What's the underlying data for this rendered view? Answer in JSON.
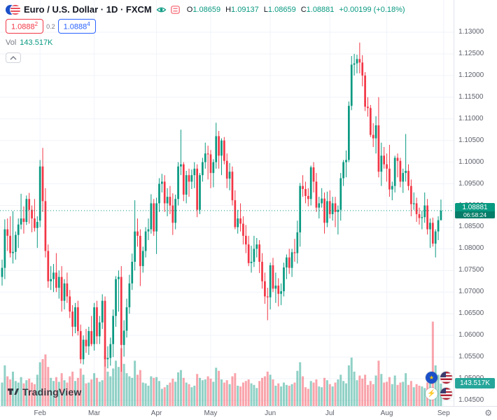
{
  "header": {
    "symbol_title": "Euro / U.S. Dollar · 1D · FXCM",
    "ohlc": {
      "o_label": "O",
      "o": "1.08659",
      "h_label": "H",
      "h": "1.09137",
      "l_label": "L",
      "l": "1.08659",
      "c_label": "C",
      "c": "1.08881",
      "change": "+0.00199 (+0.18%)"
    },
    "sell": {
      "main": "1.0888",
      "sup": "2"
    },
    "spread": "0.2",
    "buy": {
      "main": "1.0888",
      "sup": "4"
    },
    "vol_label": "Vol",
    "vol_value": "143.517K"
  },
  "axis": {
    "price_labels": [
      "1.13000",
      "1.12500",
      "1.12000",
      "1.11500",
      "1.11000",
      "1.10500",
      "1.10000",
      "1.09500",
      "1.09000",
      "1.08500",
      "1.08000",
      "1.07500",
      "1.07000",
      "1.06500",
      "1.06000",
      "1.05500",
      "1.05000",
      "1.04500"
    ],
    "price_badge": {
      "price": "1.08881",
      "countdown": "06:58:24"
    },
    "volume_badge": "143.517K"
  },
  "logo": {
    "text": "TradingView"
  },
  "colors": {
    "up": "#089981",
    "down": "#f23645",
    "buy": "#2962ff",
    "sell": "#f23645",
    "grid": "#f0f3fa",
    "axis_text": "#5d606b",
    "border": "#e0e3eb"
  },
  "chart_data": {
    "type": "candlestick",
    "title": "Euro / U.S. Dollar, 1D, FXCM",
    "ylim": [
      1.045,
      1.13
    ],
    "price_step": 0.005,
    "grid": true,
    "volume_unit": "K",
    "volume_axis_max": 560,
    "last_close": 1.08881,
    "month_ticks": [
      {
        "label": "Feb",
        "candle_index": 14
      },
      {
        "label": "Mar",
        "candle_index": 34
      },
      {
        "label": "Apr",
        "candle_index": 57
      },
      {
        "label": "May",
        "candle_index": 77
      },
      {
        "label": "Jun",
        "candle_index": 99
      },
      {
        "label": "Jul",
        "candle_index": 121
      },
      {
        "label": "Aug",
        "candle_index": 142
      },
      {
        "label": "Sep",
        "candle_index": 163
      }
    ],
    "candles_format": [
      "open",
      "high",
      "low",
      "close",
      "volume_K"
    ],
    "candles": [
      [
        1.0735,
        1.0775,
        1.0715,
        1.0756,
        150
      ],
      [
        1.0756,
        1.0868,
        1.073,
        1.0845,
        260
      ],
      [
        1.0845,
        1.087,
        1.0795,
        1.083,
        190
      ],
      [
        1.083,
        1.0875,
        1.078,
        1.079,
        170
      ],
      [
        1.079,
        1.0887,
        1.0766,
        1.0793,
        220
      ],
      [
        1.0793,
        1.084,
        1.0775,
        1.0832,
        160
      ],
      [
        1.0832,
        1.087,
        1.0802,
        1.0856,
        150
      ],
      [
        1.0856,
        1.0927,
        1.0845,
        1.087,
        185
      ],
      [
        1.087,
        1.0898,
        1.0835,
        1.0862,
        145
      ],
      [
        1.0862,
        1.0923,
        1.0855,
        1.0915,
        165
      ],
      [
        1.0915,
        1.0929,
        1.0858,
        1.089,
        175
      ],
      [
        1.089,
        1.09,
        1.0838,
        1.087,
        150
      ],
      [
        1.087,
        1.0915,
        1.084,
        1.0848,
        140
      ],
      [
        1.0848,
        1.0875,
        1.0802,
        1.0862,
        200
      ],
      [
        1.0865,
        1.1005,
        1.085,
        1.099,
        280
      ],
      [
        1.099,
        1.1033,
        1.0885,
        1.091,
        300
      ],
      [
        1.091,
        1.094,
        1.078,
        1.0795,
        330
      ],
      [
        1.0795,
        1.081,
        1.071,
        1.0725,
        250
      ],
      [
        1.0725,
        1.076,
        1.0705,
        1.073,
        180
      ],
      [
        1.073,
        1.0765,
        1.07,
        1.0745,
        160
      ],
      [
        1.0745,
        1.079,
        1.07,
        1.071,
        185
      ],
      [
        1.071,
        1.075,
        1.0685,
        1.0735,
        155
      ],
      [
        1.0735,
        1.076,
        1.0655,
        1.068,
        210
      ],
      [
        1.068,
        1.073,
        1.066,
        1.072,
        165
      ],
      [
        1.072,
        1.0745,
        1.0675,
        1.069,
        150
      ],
      [
        1.069,
        1.0705,
        1.064,
        1.0655,
        190
      ],
      [
        1.0655,
        1.067,
        1.0598,
        1.062,
        220
      ],
      [
        1.062,
        1.0675,
        1.0605,
        1.0665,
        160
      ],
      [
        1.0665,
        1.068,
        1.06,
        1.061,
        180
      ],
      [
        1.061,
        1.0625,
        1.0535,
        1.0545,
        240
      ],
      [
        1.0545,
        1.06,
        1.0533,
        1.059,
        200
      ],
      [
        1.059,
        1.0615,
        1.056,
        1.0575,
        145
      ],
      [
        1.0575,
        1.062,
        1.0555,
        1.061,
        150
      ],
      [
        1.061,
        1.0645,
        1.0575,
        1.058,
        170
      ],
      [
        1.058,
        1.0675,
        1.0565,
        1.0665,
        210
      ],
      [
        1.0665,
        1.068,
        1.058,
        1.0598,
        180
      ],
      [
        1.0598,
        1.0645,
        1.058,
        1.063,
        155
      ],
      [
        1.063,
        1.0695,
        1.0615,
        1.068,
        165
      ],
      [
        1.068,
        1.069,
        1.0528,
        1.0545,
        320
      ],
      [
        1.0545,
        1.0575,
        1.0524,
        1.0548,
        220
      ],
      [
        1.0548,
        1.0595,
        1.053,
        1.058,
        190
      ],
      [
        1.058,
        1.066,
        1.055,
        1.0645,
        240
      ],
      [
        1.0645,
        1.0737,
        1.062,
        1.073,
        290
      ],
      [
        1.073,
        1.075,
        1.0655,
        1.0735,
        250
      ],
      [
        1.0735,
        1.076,
        1.0516,
        1.0578,
        370
      ],
      [
        1.0578,
        1.0635,
        1.0551,
        1.0611,
        270
      ],
      [
        1.0611,
        1.0685,
        1.0595,
        1.0665,
        210
      ],
      [
        1.0665,
        1.074,
        1.065,
        1.072,
        190
      ],
      [
        1.072,
        1.0789,
        1.0705,
        1.077,
        180
      ],
      [
        1.077,
        1.0912,
        1.075,
        1.084,
        290
      ],
      [
        1.084,
        1.087,
        1.0805,
        1.083,
        200
      ],
      [
        1.083,
        1.0845,
        1.0714,
        1.076,
        230
      ],
      [
        1.076,
        1.0805,
        1.0745,
        1.0795,
        150
      ],
      [
        1.0795,
        1.085,
        1.078,
        1.084,
        145
      ],
      [
        1.084,
        1.087,
        1.082,
        1.0845,
        130
      ],
      [
        1.0845,
        1.0926,
        1.0835,
        1.0905,
        190
      ],
      [
        1.0905,
        1.0915,
        1.083,
        1.084,
        180
      ],
      [
        1.084,
        1.0918,
        1.0788,
        1.0905,
        185
      ],
      [
        1.0905,
        1.0963,
        1.0885,
        1.095,
        160
      ],
      [
        1.095,
        1.0973,
        1.093,
        1.0955,
        110
      ],
      [
        1.0955,
        1.097,
        1.0885,
        1.0905,
        120
      ],
      [
        1.0905,
        1.094,
        1.0875,
        1.092,
        135
      ],
      [
        1.092,
        1.0945,
        1.088,
        1.09,
        150
      ],
      [
        1.09,
        1.0928,
        1.0832,
        1.086,
        175
      ],
      [
        1.086,
        1.0925,
        1.0845,
        1.0915,
        155
      ],
      [
        1.0915,
        1.1,
        1.09,
        1.099,
        215
      ],
      [
        1.099,
        1.1075,
        1.097,
        1.0995,
        230
      ],
      [
        1.0995,
        1.1,
        1.091,
        1.0925,
        180
      ],
      [
        1.0925,
        1.098,
        1.0905,
        1.097,
        150
      ],
      [
        1.097,
        1.0985,
        1.092,
        1.0955,
        140
      ],
      [
        1.0955,
        1.0983,
        1.0938,
        1.097,
        120
      ],
      [
        1.097,
        1.1,
        1.094,
        1.0985,
        130
      ],
      [
        1.0985,
        1.0995,
        1.0873,
        1.089,
        205
      ],
      [
        1.089,
        1.0975,
        1.088,
        1.097,
        180
      ],
      [
        1.097,
        1.101,
        1.0955,
        1.1,
        165
      ],
      [
        1.1,
        1.1045,
        1.0985,
        1.102,
        170
      ],
      [
        1.102,
        1.1038,
        1.096,
        1.1018,
        190
      ],
      [
        1.1018,
        1.1028,
        1.094,
        1.0975,
        175
      ],
      [
        1.0975,
        1.1007,
        1.0942,
        1.1,
        155
      ],
      [
        1.1,
        1.1091,
        1.0985,
        1.106,
        245
      ],
      [
        1.106,
        1.1072,
        1.0985,
        1.1015,
        225
      ],
      [
        1.1015,
        1.1055,
        1.097,
        1.105,
        170
      ],
      [
        1.105,
        1.1058,
        1.0995,
        1.1003,
        150
      ],
      [
        1.1003,
        1.102,
        1.094,
        1.0962,
        165
      ],
      [
        1.0962,
        1.0998,
        1.0935,
        1.0978,
        140
      ],
      [
        1.0978,
        1.099,
        1.09,
        1.0912,
        190
      ],
      [
        1.0912,
        1.0935,
        1.0845,
        1.085,
        210
      ],
      [
        1.085,
        1.089,
        1.0835,
        1.087,
        130
      ],
      [
        1.087,
        1.0905,
        1.084,
        1.0858,
        125
      ],
      [
        1.0858,
        1.0875,
        1.081,
        1.083,
        150
      ],
      [
        1.083,
        1.0855,
        1.079,
        1.081,
        160
      ],
      [
        1.081,
        1.083,
        1.076,
        1.0767,
        170
      ],
      [
        1.0767,
        1.0807,
        1.0745,
        1.077,
        145
      ],
      [
        1.077,
        1.083,
        1.0758,
        1.08,
        135
      ],
      [
        1.08,
        1.0825,
        1.078,
        1.081,
        115
      ],
      [
        1.081,
        1.082,
        1.0744,
        1.077,
        160
      ],
      [
        1.077,
        1.079,
        1.0708,
        1.0725,
        180
      ],
      [
        1.0725,
        1.0745,
        1.0673,
        1.069,
        190
      ],
      [
        1.069,
        1.071,
        1.0635,
        1.0688,
        220
      ],
      [
        1.0688,
        1.0768,
        1.066,
        1.0762,
        200
      ],
      [
        1.0762,
        1.0779,
        1.07,
        1.0708,
        170
      ],
      [
        1.0708,
        1.0745,
        1.0675,
        1.0715,
        130
      ],
      [
        1.0715,
        1.0732,
        1.0667,
        1.0696,
        145
      ],
      [
        1.0696,
        1.072,
        1.067,
        1.0702,
        125
      ],
      [
        1.0702,
        1.0768,
        1.069,
        1.0757,
        150
      ],
      [
        1.0757,
        1.0787,
        1.073,
        1.078,
        135
      ],
      [
        1.078,
        1.08,
        1.0742,
        1.0756,
        130
      ],
      [
        1.0756,
        1.08,
        1.0735,
        1.0792,
        140
      ],
      [
        1.0792,
        1.0823,
        1.077,
        1.079,
        150
      ],
      [
        1.079,
        1.0865,
        1.0766,
        1.0838,
        225
      ],
      [
        1.0838,
        1.0952,
        1.0805,
        1.0945,
        280
      ],
      [
        1.0945,
        1.097,
        1.092,
        1.0938,
        190
      ],
      [
        1.0938,
        1.0955,
        1.0905,
        1.0922,
        120
      ],
      [
        1.0922,
        1.094,
        1.0898,
        1.0915,
        110
      ],
      [
        1.0915,
        1.0992,
        1.09,
        1.0988,
        160
      ],
      [
        1.0988,
        1.1,
        1.093,
        1.0955,
        150
      ],
      [
        1.0955,
        1.0975,
        1.0885,
        1.0895,
        170
      ],
      [
        1.0895,
        1.092,
        1.087,
        1.0905,
        125
      ],
      [
        1.0905,
        1.094,
        1.0895,
        1.0916,
        120
      ],
      [
        1.0916,
        1.093,
        1.0835,
        1.086,
        180
      ],
      [
        1.086,
        1.0932,
        1.085,
        1.091,
        165
      ],
      [
        1.091,
        1.0935,
        1.087,
        1.088,
        140
      ],
      [
        1.088,
        1.092,
        1.0865,
        1.0905,
        125
      ],
      [
        1.0905,
        1.092,
        1.085,
        1.0885,
        150
      ],
      [
        1.0885,
        1.09,
        1.0833,
        1.089,
        170
      ],
      [
        1.089,
        1.0975,
        1.0865,
        1.0963,
        200
      ],
      [
        1.0963,
        1.1005,
        1.0945,
        1.1,
        160
      ],
      [
        1.1,
        1.1027,
        1.0965,
        1.1005,
        145
      ],
      [
        1.1005,
        1.114,
        1.1,
        1.113,
        260
      ],
      [
        1.113,
        1.1245,
        1.112,
        1.1225,
        310
      ],
      [
        1.1225,
        1.125,
        1.12,
        1.1228,
        220
      ],
      [
        1.1228,
        1.1248,
        1.1205,
        1.1238,
        165
      ],
      [
        1.1238,
        1.1276,
        1.1205,
        1.123,
        195
      ],
      [
        1.123,
        1.1247,
        1.1175,
        1.12,
        175
      ],
      [
        1.12,
        1.1208,
        1.1118,
        1.1128,
        200
      ],
      [
        1.1128,
        1.115,
        1.1105,
        1.1125,
        135
      ],
      [
        1.1125,
        1.1132,
        1.1058,
        1.1063,
        160
      ],
      [
        1.1063,
        1.109,
        1.1035,
        1.1055,
        140
      ],
      [
        1.1055,
        1.1106,
        1.102,
        1.1085,
        195
      ],
      [
        1.1085,
        1.115,
        1.0965,
        1.0978,
        290
      ],
      [
        1.0978,
        1.1045,
        1.0945,
        1.1015,
        205
      ],
      [
        1.1015,
        1.1035,
        1.0985,
        1.0995,
        150
      ],
      [
        1.0995,
        1.102,
        1.0955,
        1.0985,
        155
      ],
      [
        1.0985,
        1.104,
        1.092,
        1.0937,
        185
      ],
      [
        1.0937,
        1.0955,
        1.0912,
        1.0945,
        140
      ],
      [
        1.0945,
        1.1015,
        1.093,
        1.101,
        195
      ],
      [
        1.101,
        1.102,
        1.0965,
        1.1003,
        135
      ],
      [
        1.1003,
        1.101,
        1.0942,
        1.0955,
        150
      ],
      [
        1.0955,
        1.0985,
        1.0929,
        1.0975,
        155
      ],
      [
        1.0975,
        1.1065,
        1.0955,
        1.098,
        210
      ],
      [
        1.098,
        1.0995,
        1.0935,
        1.0945,
        135
      ],
      [
        1.0945,
        1.096,
        1.0875,
        1.0903,
        160
      ],
      [
        1.0903,
        1.093,
        1.089,
        1.0905,
        120
      ],
      [
        1.0905,
        1.0918,
        1.0862,
        1.088,
        140
      ],
      [
        1.088,
        1.0895,
        1.0856,
        1.0871,
        130
      ],
      [
        1.0871,
        1.0888,
        1.0845,
        1.0873,
        125
      ],
      [
        1.0873,
        1.093,
        1.086,
        1.09,
        115
      ],
      [
        1.09,
        1.0915,
        1.0833,
        1.0845,
        150
      ],
      [
        1.0845,
        1.087,
        1.0802,
        1.086,
        160
      ],
      [
        1.086,
        1.0872,
        1.0805,
        1.0812,
        540
      ],
      [
        1.0812,
        1.0845,
        1.078,
        1.084,
        260
      ],
      [
        1.084,
        1.0875,
        1.082,
        1.0866,
        200
      ],
      [
        1.08659,
        1.09137,
        1.08659,
        1.08881,
        143.517
      ]
    ]
  }
}
